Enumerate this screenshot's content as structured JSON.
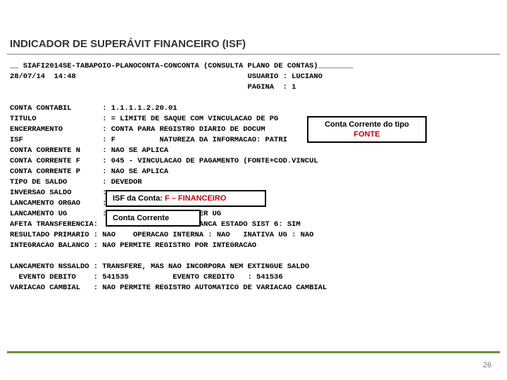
{
  "header": {
    "title": "INDICADOR DE SUPERÁVIT FINANCEIRO (ISF)"
  },
  "terminal": {
    "line1": "__ SIAFI2014SE-TABAPOIO-PLANOCONTA-CONCONTA (CONSULTA PLANO DE CONTAS)________",
    "line2": "28/07/14  14:48                                       USUARIO : LUCIANO",
    "line3": "                                                      PAGINA  : 1",
    "line4": "",
    "line5": "CONTA CONTABIL       : 1.1.1.1.2.20.01",
    "line6": "TITULO               : = LIMITE DE SAQUE COM VINCULACAO DE PG",
    "line7": "ENCERRAMENTO         : CONTA PARA REGISTRO DIARIO DE DOCUM",
    "line8": "ISF                  : F          NATUREZA DA INFORMACAO: PATRI",
    "line9": "CONTA CORRENTE N     : NAO SE APLICA",
    "line10": "CONTA CORRENTE F     : 045 - VINCULACAO DE PAGAMENTO (FONTE+COD.VINCUL",
    "line11": "CONTA CORRENTE P     : NAO SE APLICA",
    "line12": "TIPO DE SALDO        : DEVEDOR",
    "line13": "INVERSAO SALDO       :",
    "line14": "LANCAMENTO ORGAO     :",
    "line15": "LANCAMENTO UG        :                   QUER UG",
    "line16": "AFETA TRANSFERENCIA:                      LANCA ESTADO SIST 6: SIM",
    "line17": "RESULTADO PRIMARIO : NAO    OPERACAO INTERNA : NAO   INATIVA UG : NAO",
    "line18": "INTEGRACAO BALANCO : NAO PERMITE REGISTRO POR INTEGRACAO",
    "line19": "",
    "line20": "LANCAMENTO NSSALDO : TRANSFERE, MAS NAO INCORPORA NEM EXTINGUE SALDO",
    "line21": "  EVENTO DEBITO    : 541535          EVENTO CREDITO   : 541536",
    "line22": "VARIACAO CAMBIAL   : NAO PERMITE REGISTRO AUTOMATICO DE VARIACAO CAMBIAL"
  },
  "callouts": {
    "c1_plain": "Conta Corrente do tipo ",
    "c1_red": "FONTE",
    "c2_plain": "ISF da Conta: ",
    "c2_red": "F – FINANCEIRO",
    "c3_plain": "Conta Corrente"
  },
  "page": {
    "number": "26"
  },
  "colors": {
    "rule": "#6b8f3a",
    "red": "#c00000",
    "text": "#000000",
    "muted": "#7a7a7a"
  }
}
